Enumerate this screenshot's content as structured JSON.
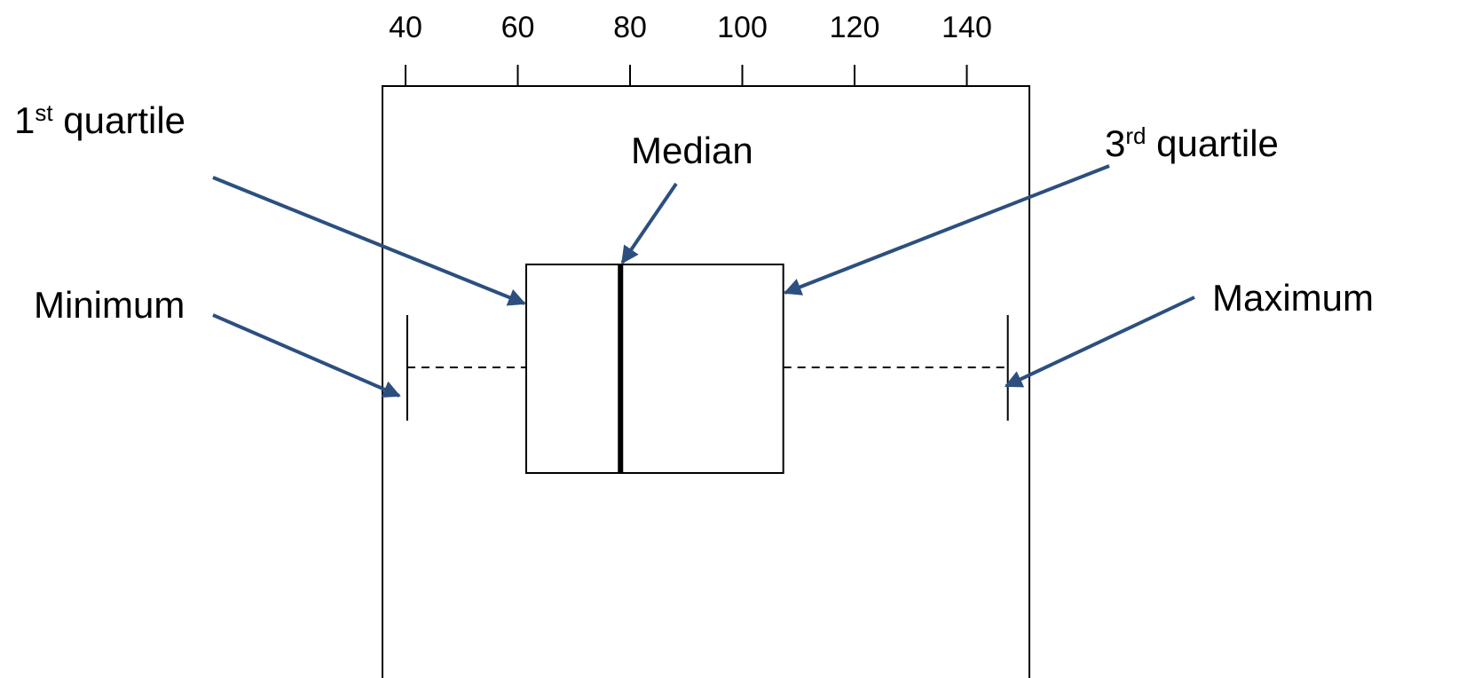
{
  "chart_data": {
    "type": "box",
    "title": "",
    "xlabel": "",
    "ylabel": "",
    "axis_position": "top",
    "xlim": [
      36,
      152
    ],
    "ticks": [
      40,
      60,
      80,
      100,
      120,
      140
    ],
    "tick_labels": [
      "40",
      "60",
      "80",
      "100",
      "120",
      "140"
    ],
    "box": {
      "minimum": 40.3,
      "q1": 61.5,
      "median": 78.3,
      "q3": 107.3,
      "maximum": 147.3
    },
    "grid": false,
    "annotations": [
      {
        "key": "q1",
        "text": "1",
        "sup": "st",
        "rest": " quartile"
      },
      {
        "key": "median",
        "text": "Median",
        "sup": "",
        "rest": ""
      },
      {
        "key": "q3",
        "text": "3",
        "sup": "rd",
        "rest": " quartile"
      },
      {
        "key": "minimum",
        "text": "Minimum",
        "sup": "",
        "rest": ""
      },
      {
        "key": "maximum",
        "text": "Maximum",
        "sup": "",
        "rest": ""
      }
    ],
    "arrow_color": "#2c4f7f"
  }
}
